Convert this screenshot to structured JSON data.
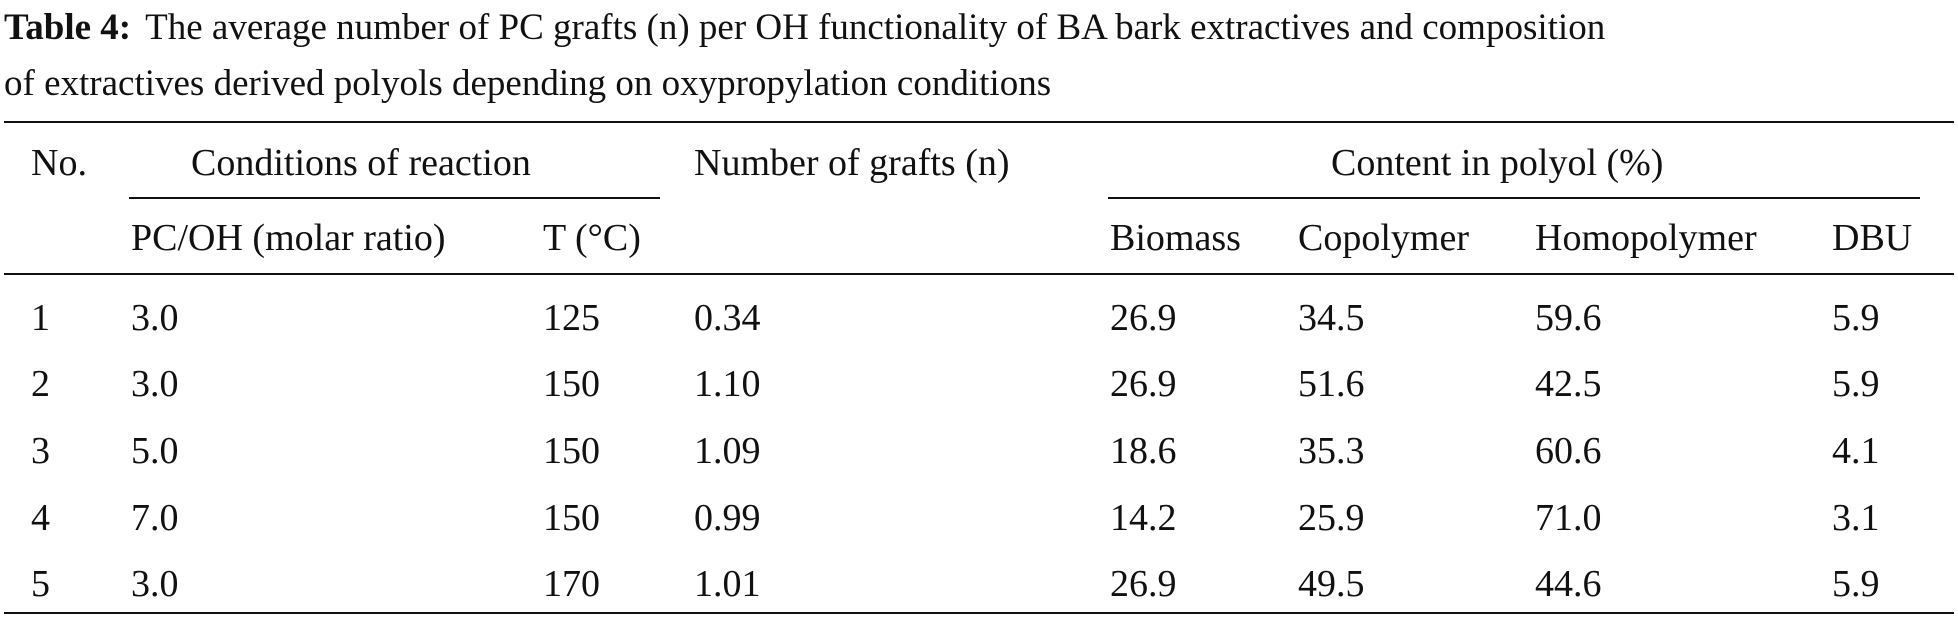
{
  "caption": {
    "label": "Table 4:",
    "line1": "The average number of PC grafts (n) per OH functionality of BA bark extractives and composition",
    "line2": "of extractives derived polyols depending on oxypropylation conditions"
  },
  "headers": {
    "no": "No.",
    "conditions": "Conditions of reaction",
    "grafts": "Number of grafts (n)",
    "content": "Content in polyol (%)",
    "pc_oh": "PC/OH (molar ratio)",
    "temp": "T (°C)",
    "biomass": "Biomass",
    "copolymer": "Copolymer",
    "homopolymer": "Homopolymer",
    "dbu": "DBU"
  },
  "rows": [
    {
      "no": "1",
      "pc_oh": "3.0",
      "temp": "125",
      "grafts": "0.34",
      "biomass": "26.9",
      "copolymer": "34.5",
      "homopolymer": "59.6",
      "dbu": "5.9"
    },
    {
      "no": "2",
      "pc_oh": "3.0",
      "temp": "150",
      "grafts": "1.10",
      "biomass": "26.9",
      "copolymer": "51.6",
      "homopolymer": "42.5",
      "dbu": "5.9"
    },
    {
      "no": "3",
      "pc_oh": "5.0",
      "temp": "150",
      "grafts": "1.09",
      "biomass": "18.6",
      "copolymer": "35.3",
      "homopolymer": "60.6",
      "dbu": "4.1"
    },
    {
      "no": "4",
      "pc_oh": "7.0",
      "temp": "150",
      "grafts": "0.99",
      "biomass": "14.2",
      "copolymer": "25.9",
      "homopolymer": "71.0",
      "dbu": "3.1"
    },
    {
      "no": "5",
      "pc_oh": "3.0",
      "temp": "170",
      "grafts": "1.01",
      "biomass": "26.9",
      "copolymer": "49.5",
      "homopolymer": "44.6",
      "dbu": "5.9"
    }
  ]
}
